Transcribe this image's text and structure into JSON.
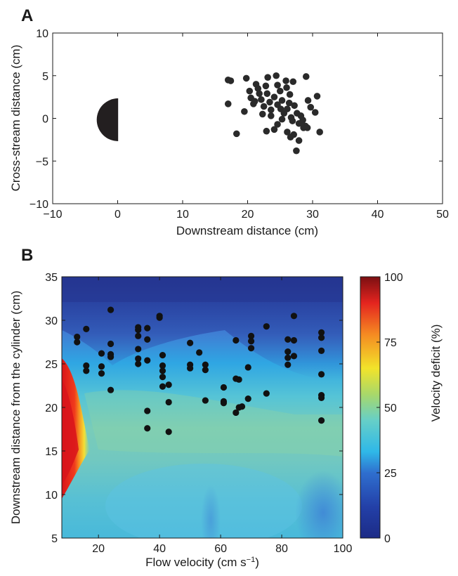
{
  "chart_data": [
    {
      "panel": "A",
      "type": "scatter",
      "xlabel": "Downstream distance (cm)",
      "ylabel": "Cross-stream distance (cm)",
      "xlim": [
        -10,
        50
      ],
      "ylim": [
        -10,
        10
      ],
      "xticks": [
        "−10",
        "0",
        "10",
        "20",
        "30",
        "40",
        "50"
      ],
      "yticks": [
        "−10",
        "−5",
        "0",
        "5",
        "10"
      ],
      "marker_color": "#2a2a2a",
      "cylinder": {
        "shape": "half-disc",
        "x": 0,
        "y": 0,
        "radius": 2.3,
        "color": "#231f20"
      },
      "points": [
        [
          17.0,
          4.5
        ],
        [
          17.4,
          4.4
        ],
        [
          17.0,
          1.7
        ],
        [
          18.3,
          -1.8
        ],
        [
          19.5,
          0.8
        ],
        [
          19.8,
          4.7
        ],
        [
          20.3,
          3.2
        ],
        [
          20.5,
          2.4
        ],
        [
          20.9,
          1.7
        ],
        [
          21.3,
          4.0
        ],
        [
          21.6,
          3.5
        ],
        [
          21.8,
          2.9
        ],
        [
          22.1,
          2.2
        ],
        [
          22.5,
          1.4
        ],
        [
          22.8,
          3.8
        ],
        [
          23.0,
          2.9
        ],
        [
          23.4,
          1.9
        ],
        [
          23.6,
          1.0
        ],
        [
          23.1,
          4.8
        ],
        [
          24.1,
          2.5
        ],
        [
          24.6,
          1.6
        ],
        [
          24.4,
          5.0
        ],
        [
          25.0,
          3.2
        ],
        [
          25.3,
          2.1
        ],
        [
          25.6,
          0.6
        ],
        [
          26.1,
          1.1
        ],
        [
          26.4,
          1.8
        ],
        [
          26.7,
          0.1
        ],
        [
          26.9,
          -0.3
        ],
        [
          27.2,
          1.5
        ],
        [
          27.6,
          0.6
        ],
        [
          27.9,
          -0.6
        ],
        [
          28.2,
          0.3
        ],
        [
          28.5,
          -0.2
        ],
        [
          28.9,
          -0.9
        ],
        [
          29.0,
          4.9
        ],
        [
          29.3,
          2.1
        ],
        [
          29.7,
          1.3
        ],
        [
          30.4,
          0.7
        ],
        [
          30.7,
          2.6
        ],
        [
          31.1,
          -1.6
        ],
        [
          24.1,
          -1.3
        ],
        [
          24.6,
          -0.7
        ],
        [
          25.3,
          -0.1
        ],
        [
          26.1,
          -1.6
        ],
        [
          26.6,
          -2.2
        ],
        [
          27.1,
          -1.9
        ],
        [
          27.5,
          -3.8
        ],
        [
          27.9,
          -2.6
        ],
        [
          28.6,
          -1.1
        ],
        [
          23.6,
          0.3
        ],
        [
          22.3,
          0.5
        ],
        [
          26.0,
          3.6
        ],
        [
          27.0,
          4.3
        ],
        [
          25.9,
          4.4
        ],
        [
          28.3,
          -0.6
        ],
        [
          29.2,
          -1.1
        ],
        [
          25.1,
          1.1
        ],
        [
          22.9,
          -1.5
        ],
        [
          24.6,
          3.9
        ],
        [
          21.1,
          2.0
        ],
        [
          26.5,
          2.8
        ]
      ]
    },
    {
      "panel": "B",
      "type": "heatmap",
      "xlabel": "Flow velocity (cm s",
      "xlabel_sup": "−1",
      "xlabel_close": ")",
      "ylabel": "Downstream distance from the cylinder (cm)",
      "xlim": [
        8,
        100
      ],
      "ylim": [
        5,
        35
      ],
      "xticks": [
        "20",
        "40",
        "60",
        "80",
        "100"
      ],
      "yticks": [
        "5",
        "10",
        "15",
        "20",
        "25",
        "30",
        "35"
      ],
      "colorbar": {
        "label": "Velocity deficit (%)",
        "range": [
          0,
          100
        ],
        "ticks": [
          "0",
          "25",
          "50",
          "75",
          "100"
        ]
      },
      "points": [
        [
          13,
          28.1
        ],
        [
          13,
          27.5
        ],
        [
          16,
          29.0
        ],
        [
          16,
          24.8
        ],
        [
          16,
          24.2
        ],
        [
          21,
          26.2
        ],
        [
          21,
          24.7
        ],
        [
          21,
          23.9
        ],
        [
          24,
          31.2
        ],
        [
          24,
          27.3
        ],
        [
          24,
          26.1
        ],
        [
          24,
          25.8
        ],
        [
          24,
          22.0
        ],
        [
          33,
          29.2
        ],
        [
          33,
          28.9
        ],
        [
          33,
          28.2
        ],
        [
          33,
          26.7
        ],
        [
          33,
          25.6
        ],
        [
          33,
          25.0
        ],
        [
          36,
          29.1
        ],
        [
          36,
          27.8
        ],
        [
          36,
          25.4
        ],
        [
          36,
          19.6
        ],
        [
          36,
          17.6
        ],
        [
          40,
          30.5
        ],
        [
          40,
          30.3
        ],
        [
          41,
          26.0
        ],
        [
          41,
          24.8
        ],
        [
          41,
          24.2
        ],
        [
          41,
          23.5
        ],
        [
          41,
          22.4
        ],
        [
          43,
          22.6
        ],
        [
          43,
          20.6
        ],
        [
          43,
          17.2
        ],
        [
          50,
          27.4
        ],
        [
          50,
          24.9
        ],
        [
          50,
          24.5
        ],
        [
          53,
          26.3
        ],
        [
          55,
          24.9
        ],
        [
          55,
          24.3
        ],
        [
          55,
          20.8
        ],
        [
          61,
          22.3
        ],
        [
          61,
          20.7
        ],
        [
          61,
          20.5
        ],
        [
          65,
          27.7
        ],
        [
          65,
          23.3
        ],
        [
          65,
          19.4
        ],
        [
          66,
          23.2
        ],
        [
          66,
          20.0
        ],
        [
          67,
          20.1
        ],
        [
          69,
          21.0
        ],
        [
          69,
          24.6
        ],
        [
          70,
          28.2
        ],
        [
          70,
          27.6
        ],
        [
          70,
          26.8
        ],
        [
          75,
          29.3
        ],
        [
          75,
          21.6
        ],
        [
          82,
          27.8
        ],
        [
          82,
          26.4
        ],
        [
          82,
          25.7
        ],
        [
          82,
          24.9
        ],
        [
          84,
          30.5
        ],
        [
          84,
          27.7
        ],
        [
          84,
          25.9
        ],
        [
          93,
          28.6
        ],
        [
          93,
          28.0
        ],
        [
          93,
          26.5
        ],
        [
          93,
          23.8
        ],
        [
          93,
          21.4
        ],
        [
          93,
          21.1
        ],
        [
          93,
          18.5
        ]
      ]
    }
  ]
}
